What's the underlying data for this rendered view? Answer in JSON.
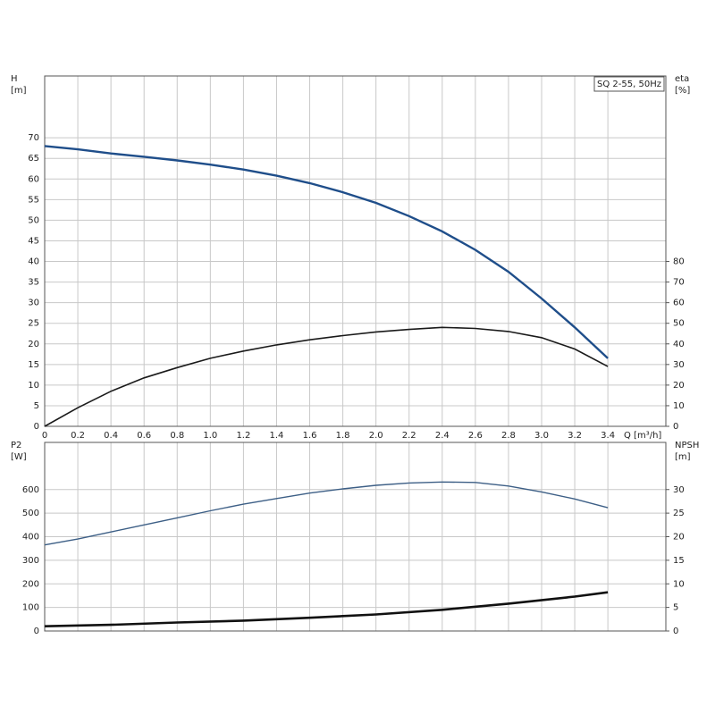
{
  "chart_data": [
    {
      "type": "line",
      "legend_text": "SQ 2-55, 50Hz",
      "y_label": "H",
      "y_unit": "[m]",
      "y2_label": "eta",
      "y2_unit": "[%]",
      "x_label": "Q [m³/h]",
      "xlim": [
        0,
        3.75
      ],
      "xticks": [
        0,
        0.2,
        0.4,
        0.6,
        0.8,
        {
          "value": 1,
          "label": "1.0"
        },
        1.2,
        1.4,
        1.6,
        1.8,
        {
          "value": 2,
          "label": "2.0"
        },
        2.2,
        2.4,
        2.6,
        2.8,
        {
          "value": 3,
          "label": "3.0"
        },
        3.2,
        3.4
      ],
      "ylim": [
        0,
        85
      ],
      "yticks": [
        0,
        5,
        10,
        15,
        20,
        25,
        30,
        35,
        40,
        45,
        50,
        55,
        60,
        65,
        70
      ],
      "y2lim": [
        0,
        170
      ],
      "y2ticks": [
        0,
        10,
        20,
        30,
        40,
        50,
        60,
        70,
        80
      ],
      "grid": true,
      "series": [
        {
          "name": "H",
          "color": "#1f4e8a",
          "width": 2.4,
          "x": [
            0,
            0.2,
            0.4,
            0.6,
            0.8,
            1.0,
            1.2,
            1.4,
            1.6,
            1.8,
            2.0,
            2.2,
            2.4,
            2.6,
            2.8,
            3.0,
            3.2,
            3.4
          ],
          "values": [
            68,
            67.2,
            66.2,
            65.4,
            64.5,
            63.5,
            62.3,
            60.8,
            59,
            56.8,
            54.2,
            51,
            47.3,
            42.8,
            37.5,
            31,
            24,
            16.5
          ]
        },
        {
          "name": "eta",
          "color": "#1a1a1a",
          "width": 1.6,
          "axis": "y2",
          "x": [
            0,
            0.2,
            0.4,
            0.6,
            0.8,
            1.0,
            1.2,
            1.4,
            1.6,
            1.8,
            2.0,
            2.2,
            2.4,
            2.6,
            2.8,
            3.0,
            3.2,
            3.4
          ],
          "values": [
            0,
            9,
            17,
            23.5,
            28.5,
            33,
            36.5,
            39.5,
            42,
            44,
            45.8,
            47,
            48,
            47.5,
            46,
            43,
            37.5,
            29
          ]
        }
      ]
    },
    {
      "type": "line",
      "y_label": "P2",
      "y_unit": "[W]",
      "y2_label": "NPSH",
      "y2_unit": "[m]",
      "xlim": [
        0,
        3.75
      ],
      "xticks": [
        0,
        0.2,
        0.4,
        0.6,
        0.8,
        1,
        1.2,
        1.4,
        1.6,
        1.8,
        2,
        2.2,
        2.4,
        2.6,
        2.8,
        3,
        3.2,
        3.4
      ],
      "show_xtick_labels": false,
      "ylim": [
        0,
        800
      ],
      "yticks": [
        0,
        100,
        200,
        300,
        400,
        500,
        600
      ],
      "y2lim": [
        0,
        40
      ],
      "y2ticks": [
        0,
        5,
        10,
        15,
        20,
        25,
        30
      ],
      "grid": true,
      "series": [
        {
          "name": "P2",
          "color": "#3d5f86",
          "width": 1.4,
          "x": [
            0,
            0.2,
            0.4,
            0.6,
            0.8,
            1.0,
            1.2,
            1.4,
            1.6,
            1.8,
            2.0,
            2.2,
            2.4,
            2.6,
            2.8,
            3.0,
            3.2,
            3.4
          ],
          "values": [
            365,
            390,
            420,
            450,
            480,
            510,
            538,
            562,
            585,
            603,
            618,
            628,
            632,
            630,
            615,
            590,
            560,
            523
          ]
        },
        {
          "name": "NPSH",
          "color": "#111111",
          "width": 2.6,
          "axis": "y2",
          "x": [
            0,
            0.4,
            0.8,
            1.2,
            1.6,
            2.0,
            2.4,
            2.8,
            3.2,
            3.4
          ],
          "values": [
            1,
            1.3,
            1.8,
            2.2,
            2.8,
            3.5,
            4.5,
            5.8,
            7.3,
            8.2
          ]
        }
      ]
    }
  ]
}
